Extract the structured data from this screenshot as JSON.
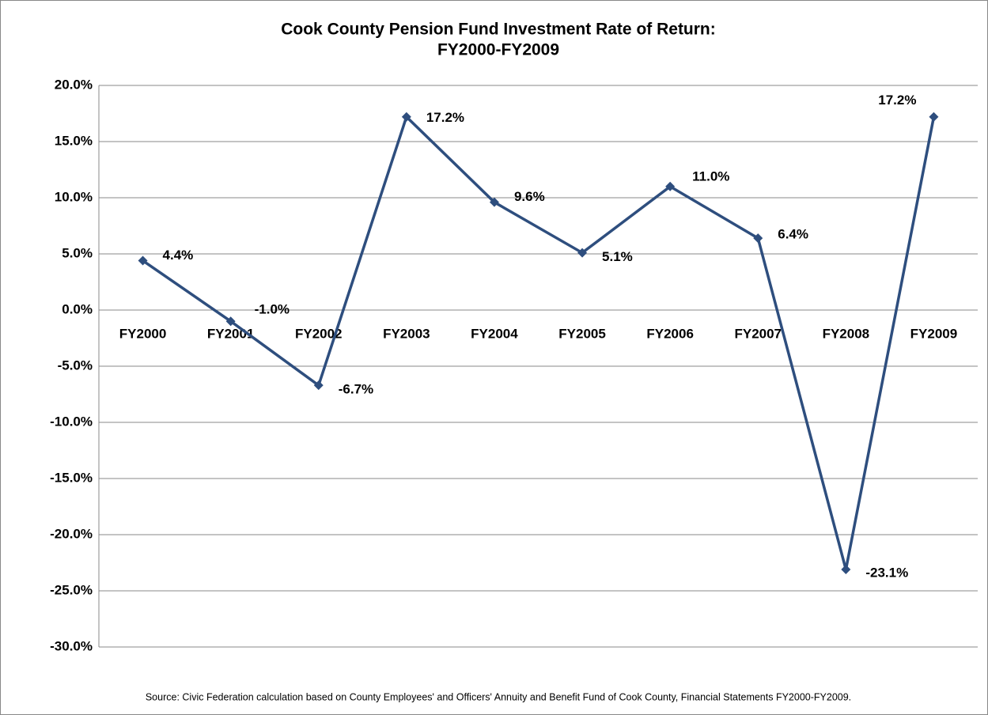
{
  "chart_data": {
    "type": "line",
    "title": [
      "Cook County Pension Fund Investment Rate of Return:",
      "FY2000-FY2009"
    ],
    "categories": [
      "FY2000",
      "FY2001",
      "FY2002",
      "FY2003",
      "FY2004",
      "FY2005",
      "FY2006",
      "FY2007",
      "FY2008",
      "FY2009"
    ],
    "values": [
      4.4,
      -1.0,
      -6.7,
      17.2,
      9.6,
      5.1,
      11.0,
      6.4,
      -23.1,
      17.2
    ],
    "value_labels": [
      "4.4%",
      "-1.0%",
      "-6.7%",
      "17.2%",
      "9.6%",
      "5.1%",
      "11.0%",
      "6.4%",
      "-23.1%",
      "17.2%"
    ],
    "color": "#2E4E7E",
    "ylim": [
      -30,
      20
    ],
    "yticks": [
      {
        "value": -30,
        "label": "-30.0%"
      },
      {
        "value": -25,
        "label": "-25.0%"
      },
      {
        "value": -20,
        "label": "-20.0%"
      },
      {
        "value": -15,
        "label": "-15.0%"
      },
      {
        "value": -10,
        "label": "-10.0%"
      },
      {
        "value": -5,
        "label": "-5.0%"
      },
      {
        "value": 0,
        "label": "0.0%"
      },
      {
        "value": 5,
        "label": "5.0%"
      },
      {
        "value": 10,
        "label": "10.0%"
      },
      {
        "value": 15,
        "label": "15.0%"
      },
      {
        "value": 20,
        "label": "20.0%"
      }
    ],
    "grid": true,
    "source": "Source: Civic Federation calculation based on County Employees' and Officers' Annuity and Benefit Fund of Cook County, Financial Statements FY2000-FY2009."
  }
}
